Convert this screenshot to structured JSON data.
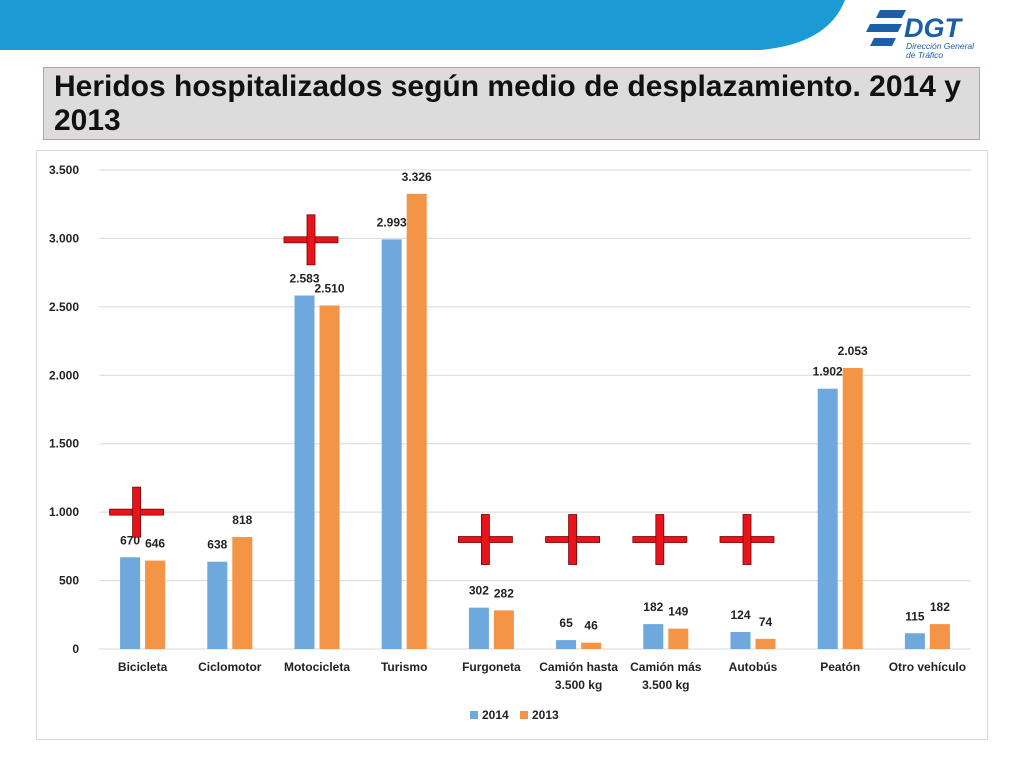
{
  "header": {
    "title": "Heridos hospitalizados según medio de desplazamiento. 2014 y 2013",
    "logo_text": "DGT",
    "logo_sub": [
      "Dirección General",
      "de Tráfico"
    ],
    "band_color": "#1b9ad6"
  },
  "colors": {
    "series_2014": "#6fa8dc",
    "series_2013": "#f39447",
    "marker": "#e8141c",
    "title_border": "#8dc26a"
  },
  "icons": {
    "marker": "red-cross-icon",
    "logo": "dgt-logo-icon"
  },
  "chart_data": {
    "type": "bar",
    "categories": [
      [
        "Bicicleta"
      ],
      [
        "Ciclomotor"
      ],
      [
        "Motocicleta"
      ],
      [
        "Turismo"
      ],
      [
        "Furgoneta"
      ],
      [
        "Camión hasta",
        "3.500 kg"
      ],
      [
        "Camión más",
        "3.500 kg"
      ],
      [
        "Autobús"
      ],
      [
        "Peatón"
      ],
      [
        "Otro vehículo"
      ]
    ],
    "series": [
      {
        "name": "2014",
        "values": [
          670,
          638,
          2583,
          2993,
          302,
          65,
          182,
          124,
          1902,
          115
        ],
        "labels": [
          "670",
          "638",
          "2.583",
          "2.993",
          "302",
          "65",
          "182",
          "124",
          "1.902",
          "115"
        ]
      },
      {
        "name": "2013",
        "values": [
          646,
          818,
          2510,
          3326,
          282,
          46,
          149,
          74,
          2053,
          182
        ],
        "labels": [
          "646",
          "818",
          "2.510",
          "3.326",
          "282",
          "46",
          "149",
          "74",
          "2.053",
          "182"
        ]
      }
    ],
    "ylim": [
      0,
      3500
    ],
    "yticks": [
      0,
      500,
      1000,
      1500,
      2000,
      2500,
      3000,
      3500
    ],
    "ytick_labels": [
      "0",
      "500",
      "1.000",
      "1.500",
      "2.000",
      "2.500",
      "3.000",
      "3.500"
    ],
    "grid": true,
    "legend_position": "bottom-center",
    "markers": [
      {
        "category_index": 0,
        "level": 1000
      },
      {
        "category_index": 2,
        "level": 2990
      },
      {
        "category_index": 4,
        "level": 800
      },
      {
        "category_index": 5,
        "level": 800
      },
      {
        "category_index": 6,
        "level": 800
      },
      {
        "category_index": 7,
        "level": 800
      }
    ]
  }
}
